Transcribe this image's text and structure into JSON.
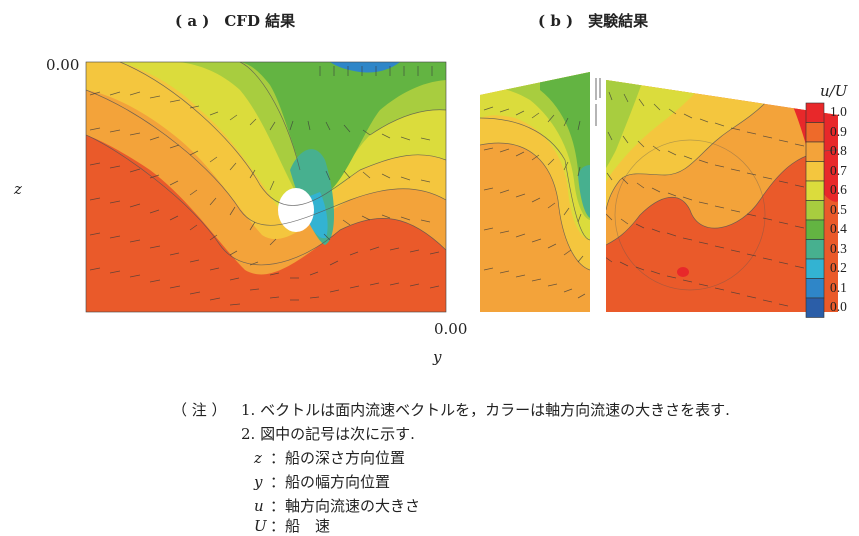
{
  "chart_data": {
    "type": "heatmap",
    "panels": [
      {
        "label": "( a )　CFD 結果"
      },
      {
        "label": "( b )　実験結果"
      }
    ],
    "ylabel": "z",
    "xlabel": "y",
    "y_tick": "0.00",
    "x_tick": "0.00",
    "colorbar": {
      "title": "u/U",
      "ticks": [
        "1.0",
        "0.9",
        "0.8",
        "0.7",
        "0.6",
        "0.5",
        "0.4",
        "0.3",
        "0.2",
        "0.1",
        "0.0"
      ],
      "levels": [
        1.0,
        0.9,
        0.8,
        0.7,
        0.6,
        0.5,
        0.4,
        0.3,
        0.2,
        0.1,
        0.0
      ],
      "colors": [
        "#e8282a",
        "#ee6a2a",
        "#f3a33a",
        "#f4c63e",
        "#dbdc3c",
        "#a8cd3f",
        "#63b442",
        "#47b08f",
        "#33b3d2",
        "#2f86c8",
        "#2b5ea8"
      ]
    }
  },
  "notes": {
    "header": "（ 注 ）",
    "line1": "1. ベクトルは面内流速ベクトルを，カラーは軸方向流速の大きさを表す.",
    "line2": "2. 図中の記号は次に示す.",
    "symbols": [
      {
        "sym": "z",
        "desc": "：船の深さ方向位置"
      },
      {
        "sym": "y",
        "desc": "：船の幅方向位置"
      },
      {
        "sym": "u",
        "desc": "：軸方向流速の大きさ"
      },
      {
        "sym": "U",
        "desc": "：船　速"
      }
    ]
  }
}
